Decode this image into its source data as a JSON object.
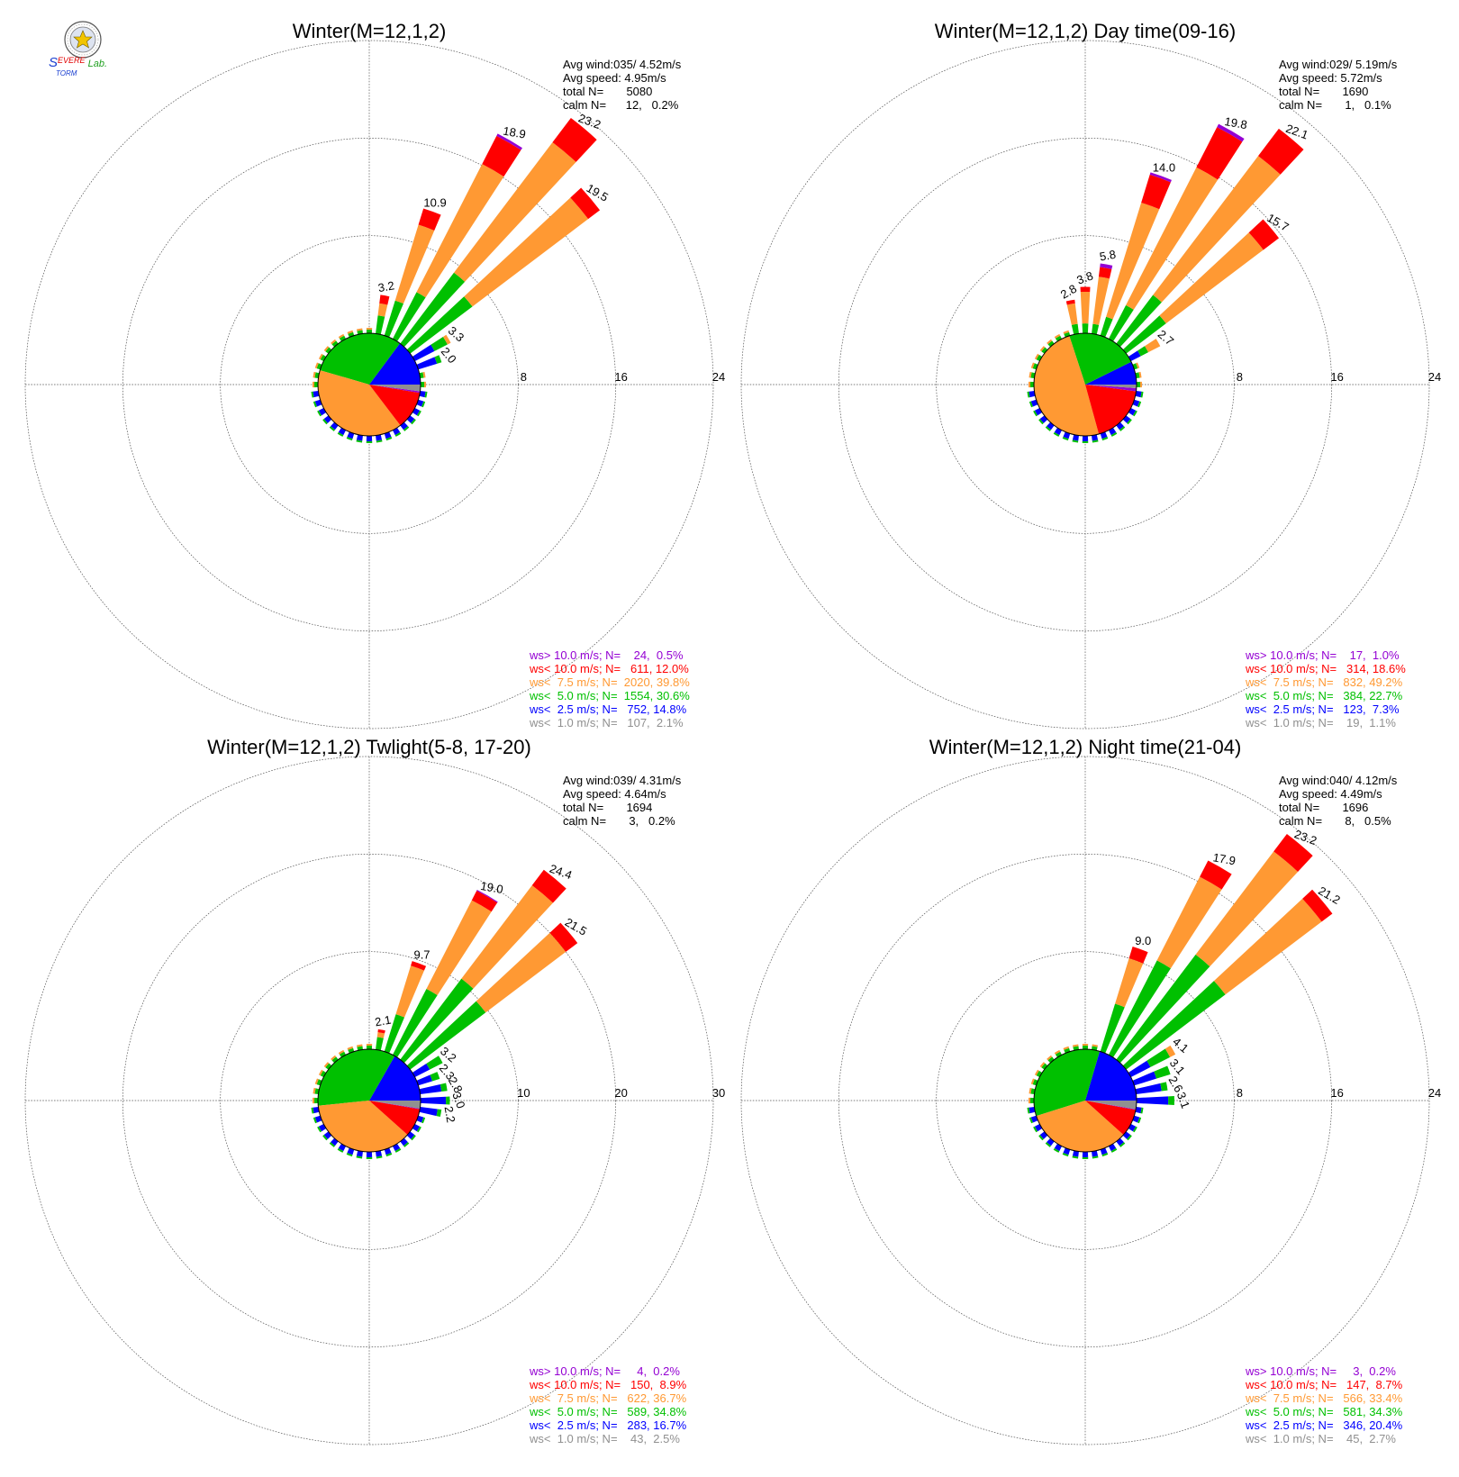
{
  "logo": {
    "line1_a": "S",
    "line1_b": "EVERE",
    "line2": "TORM",
    "line2_lab": "Lab.",
    "colors": {
      "s": "#1a3fd0",
      "evere": "#e00000",
      "torm": "#1a3fd0",
      "lab": "#20a020"
    }
  },
  "legend_colors": {
    "ws_gt_10": "#9400d3",
    "ws_lt_10": "#ff0000",
    "ws_lt_7_5": "#ff9933",
    "ws_lt_5": "#00c000",
    "ws_lt_2_5": "#0000ff",
    "ws_lt_1": "#909090"
  },
  "chart_data": [
    {
      "type": "wind-rose",
      "title": "Winter(M=12,1,2)",
      "ring_labels": [
        "8",
        "16",
        "24"
      ],
      "rmax": 24,
      "stats": [
        "Avg wind:035/ 4.52m/s",
        "Avg speed: 4.95m/s",
        "total N=       5080",
        "calm N=      12,   0.2%"
      ],
      "legend": [
        "ws> 10.0 m/s; N=    24,  0.5%",
        "ws< 10.0 m/s; N=   611, 12.0%",
        "ws<  7.5 m/s; N=  2020, 39.8%",
        "ws<  5.0 m/s; N=  1554, 30.6%",
        "ws<  2.5 m/s; N=   752, 14.8%",
        "ws<  1.0 m/s; N=   107,  2.1%"
      ],
      "center_pie": [
        14.8,
        30.6,
        39.8,
        12.0,
        0.5,
        2.1
      ],
      "petals": [
        {
          "dir": 10,
          "total": 3.2,
          "parts": [
            0,
            1.5,
            1.0,
            0.7,
            0
          ]
        },
        {
          "dir": 20,
          "total": 10.9,
          "parts": [
            0,
            3.0,
            6.5,
            1.4,
            0
          ]
        },
        {
          "dir": 30,
          "total": 18.9,
          "parts": [
            0,
            4.3,
            11.8,
            2.6,
            0.2
          ]
        },
        {
          "dir": 40,
          "total": 23.2,
          "parts": [
            0,
            7.3,
            13.4,
            2.5,
            0
          ]
        },
        {
          "dir": 50,
          "total": 19.5,
          "parts": [
            0,
            6.4,
            11.9,
            1.2,
            0
          ]
        },
        {
          "dir": 60,
          "total": 3.3,
          "parts": [
            1.8,
            1.2,
            0.3,
            0,
            0
          ]
        },
        {
          "dir": 70,
          "total": 2.0,
          "parts": [
            1.6,
            0.4,
            0,
            0,
            0
          ]
        }
      ],
      "bar_labels": [
        "3.2",
        "10.9",
        "18.9",
        "23.2",
        "19.5",
        "3.3",
        "2.0"
      ]
    },
    {
      "type": "wind-rose",
      "title": "Winter(M=12,1,2) Day time(09-16)",
      "ring_labels": [
        "8",
        "16",
        "24"
      ],
      "rmax": 24,
      "stats": [
        "Avg wind:029/ 5.19m/s",
        "Avg speed: 5.72m/s",
        "total N=       1690",
        "calm N=       1,   0.1%"
      ],
      "legend": [
        "ws> 10.0 m/s; N=    17,  1.0%",
        "ws< 10.0 m/s; N=   314, 18.6%",
        "ws<  7.5 m/s; N=   832, 49.2%",
        "ws<  5.0 m/s; N=   384, 22.7%",
        "ws<  2.5 m/s; N=   123,  7.3%",
        "ws<  1.0 m/s; N=    19,  1.1%"
      ],
      "center_pie": [
        7.3,
        22.7,
        49.2,
        18.6,
        1.0,
        1.1
      ],
      "petals": [
        {
          "dir": 350,
          "total": 2.8,
          "parts": [
            0,
            0.8,
            1.7,
            0.3,
            0
          ]
        },
        {
          "dir": 0,
          "total": 3.8,
          "parts": [
            0,
            0.8,
            2.6,
            0.4,
            0
          ]
        },
        {
          "dir": 10,
          "total": 5.8,
          "parts": [
            0,
            0.8,
            3.9,
            0.8,
            0.3
          ]
        },
        {
          "dir": 20,
          "total": 14.0,
          "parts": [
            0,
            1.6,
            9.8,
            2.4,
            0.2
          ]
        },
        {
          "dir": 30,
          "total": 19.8,
          "parts": [
            0,
            3.1,
            12.7,
            3.7,
            0.3
          ]
        },
        {
          "dir": 40,
          "total": 22.1,
          "parts": [
            0,
            5.0,
            14.3,
            2.8,
            0
          ]
        },
        {
          "dir": 50,
          "total": 15.7,
          "parts": [
            0,
            4.1,
            10.0,
            1.6,
            0
          ]
        },
        {
          "dir": 60,
          "total": 2.7,
          "parts": [
            0.9,
            0.7,
            1.1,
            0,
            0
          ]
        }
      ],
      "bar_labels": [
        "2.8",
        "3.8",
        "5.8",
        "14.0",
        "19.8",
        "22.1",
        "15.7",
        "2.7"
      ]
    },
    {
      "type": "wind-rose",
      "title": "Winter(M=12,1,2) Twlight(5-8, 17-20)",
      "ring_labels": [
        "10",
        "20",
        "30"
      ],
      "rmax": 30,
      "stats": [
        "Avg wind:039/ 4.31m/s",
        "Avg speed: 4.64m/s",
        "total N=       1694",
        "calm N=       3,   0.2%"
      ],
      "legend": [
        "ws> 10.0 m/s; N=     4,  0.2%",
        "ws< 10.0 m/s; N=   150,  8.9%",
        "ws<  7.5 m/s; N=   622, 36.7%",
        "ws<  5.0 m/s; N=   589, 34.8%",
        "ws<  2.5 m/s; N=   283, 16.7%",
        "ws<  1.0 m/s; N=    43,  2.5%"
      ],
      "center_pie": [
        16.7,
        34.8,
        36.7,
        8.9,
        0.2,
        2.5
      ],
      "petals": [
        {
          "dir": 10,
          "total": 2.1,
          "parts": [
            0,
            1.3,
            0.5,
            0.3,
            0
          ]
        },
        {
          "dir": 20,
          "total": 9.7,
          "parts": [
            0,
            4.0,
            5.2,
            0.5,
            0
          ]
        },
        {
          "dir": 30,
          "total": 19.0,
          "parts": [
            0,
            7.6,
            10.2,
            1.1,
            0.1
          ]
        },
        {
          "dir": 40,
          "total": 24.4,
          "parts": [
            0,
            10.4,
            12.0,
            2.0,
            0
          ]
        },
        {
          "dir": 50,
          "total": 21.5,
          "parts": [
            0,
            9.7,
            10.3,
            1.5,
            0
          ]
        },
        {
          "dir": 60,
          "total": 3.2,
          "parts": [
            1.7,
            1.5,
            0,
            0,
            0
          ]
        },
        {
          "dir": 70,
          "total": 2.3,
          "parts": [
            1.5,
            0.8,
            0,
            0,
            0
          ]
        },
        {
          "dir": 80,
          "total": 2.8,
          "parts": [
            2.2,
            0.6,
            0,
            0,
            0
          ]
        },
        {
          "dir": 90,
          "total": 3.0,
          "parts": [
            2.6,
            0.4,
            0,
            0,
            0
          ]
        },
        {
          "dir": 100,
          "total": 2.2,
          "parts": [
            1.8,
            0.4,
            0,
            0,
            0
          ]
        }
      ],
      "bar_labels": [
        "2.1",
        "9.7",
        "19.0",
        "24.4",
        "21.5",
        "3.2",
        "2.3",
        "2.8",
        "3.0",
        "2.2"
      ]
    },
    {
      "type": "wind-rose",
      "title": "Winter(M=12,1,2) Night time(21-04)",
      "ring_labels": [
        "8",
        "16",
        "24"
      ],
      "rmax": 24,
      "stats": [
        "Avg wind:040/ 4.12m/s",
        "Avg speed: 4.49m/s",
        "total N=       1696",
        "calm N=       8,   0.5%"
      ],
      "legend": [
        "ws> 10.0 m/s; N=     3,  0.2%",
        "ws< 10.0 m/s; N=   147,  8.7%",
        "ws<  7.5 m/s; N=   566, 33.4%",
        "ws<  5.0 m/s; N=   581, 34.3%",
        "ws<  2.5 m/s; N=   346, 20.4%",
        "ws<  1.0 m/s; N=    45,  2.7%"
      ],
      "center_pie": [
        20.4,
        34.3,
        33.4,
        8.7,
        0.2,
        2.7
      ],
      "petals": [
        {
          "dir": 20,
          "total": 9.0,
          "parts": [
            0,
            4.1,
            3.9,
            1.0,
            0
          ]
        },
        {
          "dir": 30,
          "total": 17.9,
          "parts": [
            0,
            8.7,
            7.7,
            1.5,
            0
          ]
        },
        {
          "dir": 40,
          "total": 23.2,
          "parts": [
            0,
            10.8,
            10.6,
            1.8,
            0
          ]
        },
        {
          "dir": 50,
          "total": 21.2,
          "parts": [
            0,
            10.2,
            9.9,
            1.1,
            0
          ]
        },
        {
          "dir": 60,
          "total": 4.1,
          "parts": [
            1.8,
            1.8,
            0.5,
            0,
            0
          ]
        },
        {
          "dir": 70,
          "total": 3.1,
          "parts": [
            1.9,
            1.2,
            0,
            0,
            0
          ]
        },
        {
          "dir": 80,
          "total": 2.6,
          "parts": [
            2.1,
            0.5,
            0,
            0,
            0
          ]
        },
        {
          "dir": 90,
          "total": 3.1,
          "parts": [
            2.6,
            0.5,
            0,
            0,
            0
          ]
        }
      ],
      "bar_labels": [
        "9.0",
        "17.9",
        "23.2",
        "21.2",
        "4.1",
        "3.1",
        "2.6",
        "3.1"
      ]
    }
  ]
}
